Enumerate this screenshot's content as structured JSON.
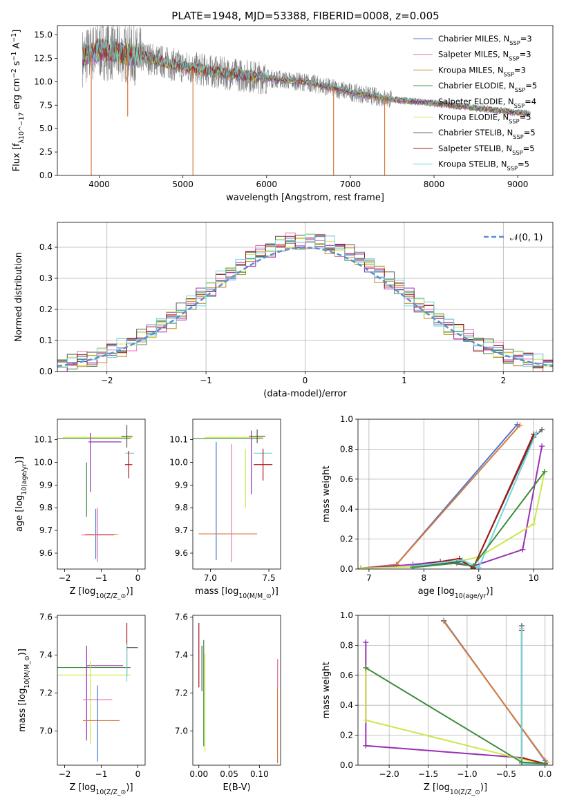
{
  "figure": {
    "title": "PLATE=1948, MJD=53388, FIBERID=0008, z=0.005"
  },
  "colors": {
    "chabrier_miles": "#4a78d6",
    "salpeter_miles": "#e676b5",
    "kroupa_miles": "#c08a2a",
    "chabrier_elodie": "#3c8c3c",
    "salpeter_elodie": "#9a2eb5",
    "kroupa_elodie": "#cde64a",
    "chabrier_stelib": "#555555",
    "salpeter_stelib": "#a51616",
    "kroupa_stelib": "#6fd6dc",
    "data": "#808080",
    "orange": "#d9793a",
    "normal_curve": "#5a8ed6"
  },
  "chart_data": [
    {
      "type": "line",
      "id": "spectrum",
      "title": "PLATE=1948, MJD=53388, FIBERID=0008, z=0.005",
      "xlabel": "wavelength [Angstrom, rest frame]",
      "ylabel": "Flux [f_λ 10^-17 erg cm^-2 s^-1 A^-1]",
      "xlim": [
        3500,
        9420
      ],
      "ylim": [
        0,
        16
      ],
      "xticks": [
        "4000",
        "5000",
        "6000",
        "7000",
        "8000",
        "9000"
      ],
      "yticks": [
        "0.0",
        "2.5",
        "5.0",
        "7.5",
        "10.0",
        "12.5",
        "15.0"
      ],
      "legend": "top-right",
      "series": [
        {
          "name": "Chabrier MILES, N_SSP=3"
        },
        {
          "name": "Salpeter MILES, N_SSP=3"
        },
        {
          "name": "Kroupa MILES, N_SSP=3"
        },
        {
          "name": "Chabrier ELODIE, N_SSP=5"
        },
        {
          "name": "Salpeter ELODIE, N_SSP=4"
        },
        {
          "name": "Kroupa ELODIE, N_SSP=5"
        },
        {
          "name": "Chabrier STELIB, N_SSP=5"
        },
        {
          "name": "Salpeter STELIB, N_SSP=5"
        },
        {
          "name": "Kroupa STELIB, N_SSP=5"
        }
      ],
      "continuum": {
        "x": [
          3800,
          4000,
          4500,
          5000,
          5500,
          6000,
          6500,
          7000,
          7500,
          8000,
          8500,
          9000,
          9150
        ],
        "y": [
          12.6,
          13.4,
          12.7,
          11.6,
          10.9,
          10.4,
          9.9,
          8.9,
          8.1,
          7.7,
          7.2,
          6.7,
          6.6
        ]
      },
      "dips": [
        {
          "x": 3905,
          "y": 0.0
        },
        {
          "x": 4340,
          "y": 6.3
        },
        {
          "x": 5120,
          "y": 0.0
        },
        {
          "x": 6800,
          "y": 0.0
        },
        {
          "x": 7410,
          "y": 0.0
        }
      ]
    },
    {
      "type": "line",
      "id": "residuals",
      "xlabel": "(data-model)/error",
      "ylabel": "Normed distribution",
      "xlim": [
        -2.5,
        2.5
      ],
      "ylim": [
        0,
        0.48
      ],
      "xticks": [
        "−2",
        "−1",
        "0",
        "1",
        "2"
      ],
      "yticks": [
        "0.0",
        "0.1",
        "0.2",
        "0.3",
        "0.4"
      ],
      "grid": true,
      "legend": "top-right",
      "legend_label": "𝒩(0, 1)",
      "bin_width": 0.1,
      "hist_noise": [
        0.01,
        -0.01,
        0.015,
        -0.02,
        0.005,
        0.02,
        -0.015,
        0.01,
        -0.005,
        0.018,
        -0.012,
        0.008,
        -0.02,
        0.012,
        0.0,
        -0.008,
        0.015,
        -0.018,
        0.006,
        0.02,
        -0.01
      ]
    },
    {
      "type": "scatter",
      "id": "age-vs-z",
      "xlabel": "Z [log10(Z/Z⊙)]",
      "ylabel": "age [log10(age/yr)]",
      "xlim": [
        -2.2,
        0.2
      ],
      "ylim": [
        9.53,
        10.19
      ],
      "xticks": [
        "−2",
        "−1",
        "0"
      ],
      "yticks": [
        "9.6",
        "9.7",
        "9.8",
        "9.9",
        "10.0",
        "10.1"
      ],
      "points": [
        {
          "x": -1.2,
          "y": 10.105,
          "xerr": 1.0,
          "yerr": 0.0,
          "color": "chabrier_elodie"
        },
        {
          "x": -1.1,
          "y": 10.11,
          "xerr": 0.95,
          "yerr": 0.0,
          "color": "kroupa_elodie"
        },
        {
          "x": -0.3,
          "y": 10.115,
          "xerr": 0.15,
          "yerr": 0.05,
          "color": "chabrier_stelib"
        },
        {
          "x": -1.3,
          "y": 10.0,
          "xerr": 0.0,
          "yerr": 0.13,
          "color": "salpeter_elodie"
        },
        {
          "x": -1.4,
          "y": 9.88,
          "xerr": 0.0,
          "yerr": 0.12,
          "color": "chabrier_elodie"
        },
        {
          "x": -0.9,
          "y": 10.09,
          "xerr": 0.45,
          "yerr": 0.0,
          "color": "salpeter_elodie"
        },
        {
          "x": -0.22,
          "y": 10.04,
          "xerr": 0.12,
          "yerr": 0.0,
          "color": "kroupa_stelib"
        },
        {
          "x": -0.25,
          "y": 9.99,
          "xerr": 0.1,
          "yerr": 0.06,
          "color": "salpeter_stelib"
        },
        {
          "x": -1.15,
          "y": 9.685,
          "xerr": 0.0,
          "yerr": 0.11,
          "color": "chabrier_miles"
        },
        {
          "x": -1.1,
          "y": 9.68,
          "xerr": 0.45,
          "yerr": 0.12,
          "color": "salpeter_miles"
        },
        {
          "x": -1.0,
          "y": 9.683,
          "xerr": 0.45,
          "yerr": 0.0,
          "color": "orange"
        }
      ]
    },
    {
      "type": "scatter",
      "id": "age-vs-mass",
      "xlabel": "mass [log10(M/M⊙)]",
      "ylabel": "",
      "xlim": [
        6.85,
        7.6
      ],
      "ylim": [
        9.53,
        10.19
      ],
      "xticks": [
        "7.0",
        "7.5"
      ],
      "yticks": [
        "9.6",
        "9.7",
        "9.8",
        "9.9",
        "10.0",
        "10.1"
      ],
      "points": [
        {
          "x": 7.15,
          "y": 10.105,
          "xerr": 0.3,
          "yerr": 0.0,
          "color": "chabrier_elodie"
        },
        {
          "x": 7.2,
          "y": 10.11,
          "xerr": 0.25,
          "yerr": 0.0,
          "color": "kroupa_elodie"
        },
        {
          "x": 7.4,
          "y": 10.115,
          "xerr": 0.07,
          "yerr": 0.03,
          "color": "chabrier_stelib"
        },
        {
          "x": 7.35,
          "y": 10.0,
          "xerr": 0.0,
          "yerr": 0.14,
          "color": "salpeter_elodie"
        },
        {
          "x": 7.45,
          "y": 10.04,
          "xerr": 0.08,
          "yerr": 0.0,
          "color": "kroupa_stelib"
        },
        {
          "x": 7.45,
          "y": 9.99,
          "xerr": 0.08,
          "yerr": 0.07,
          "color": "salpeter_stelib"
        },
        {
          "x": 7.3,
          "y": 9.93,
          "xerr": 0.0,
          "yerr": 0.13,
          "color": "kroupa_elodie"
        },
        {
          "x": 7.05,
          "y": 9.83,
          "xerr": 0.0,
          "yerr": 0.26,
          "color": "chabrier_miles"
        },
        {
          "x": 7.15,
          "y": 9.685,
          "xerr": 0.25,
          "yerr": 0.0,
          "color": "orange"
        },
        {
          "x": 7.18,
          "y": 9.82,
          "xerr": 0.0,
          "yerr": 0.26,
          "color": "salpeter_miles"
        }
      ]
    },
    {
      "type": "line",
      "id": "mass-weight-vs-age",
      "xlabel": "age [log10(age/yr)]",
      "ylabel": "mass weight",
      "xlim": [
        6.8,
        10.35
      ],
      "ylim": [
        0,
        1.0
      ],
      "xticks": [
        "7",
        "8",
        "9",
        "10"
      ],
      "yticks": [
        "0.0",
        "0.2",
        "0.4",
        "0.6",
        "0.8",
        "1.0"
      ],
      "grid": true,
      "series": [
        {
          "color": "chabrier_miles",
          "x": [
            6.85,
            7.5,
            9.7
          ],
          "y": [
            0.005,
            0.03,
            0.965
          ]
        },
        {
          "color": "orange",
          "x": [
            6.85,
            7.5,
            9.75
          ],
          "y": [
            0.005,
            0.03,
            0.96
          ]
        },
        {
          "color": "salpeter_elodie",
          "x": [
            6.85,
            7.8,
            8.3,
            8.9,
            9.8,
            10.15
          ],
          "y": [
            0.005,
            0.03,
            0.05,
            0.02,
            0.13,
            0.82
          ]
        },
        {
          "color": "kroupa_elodie",
          "x": [
            6.85,
            7.8,
            8.5,
            9.0,
            10.0,
            10.2
          ],
          "y": [
            0.005,
            0.015,
            0.04,
            0.08,
            0.3,
            0.65
          ]
        },
        {
          "color": "chabrier_stelib",
          "x": [
            7.8,
            8.7,
            8.9,
            10.0,
            10.15
          ],
          "y": [
            0.02,
            0.05,
            0.01,
            0.88,
            0.93
          ]
        },
        {
          "color": "salpeter_stelib",
          "x": [
            7.8,
            8.65,
            8.9,
            10.0
          ],
          "y": [
            0.02,
            0.07,
            0.005,
            0.9
          ]
        },
        {
          "color": "kroupa_stelib",
          "x": [
            7.8,
            8.7,
            9.0,
            10.05
          ],
          "y": [
            0.02,
            0.06,
            0.01,
            0.91
          ]
        },
        {
          "color": "chabrier_elodie",
          "x": [
            7.8,
            8.6,
            8.9,
            10.2
          ],
          "y": [
            0.01,
            0.04,
            0.02,
            0.65
          ]
        }
      ]
    },
    {
      "type": "scatter",
      "id": "mass-vs-z",
      "xlabel": "Z [log10(Z/Z⊙)]",
      "ylabel": "mass [log10(M/M⊙)]",
      "xlim": [
        -2.2,
        0.2
      ],
      "ylim": [
        6.82,
        7.61
      ],
      "xticks": [
        "−2",
        "−1",
        "0"
      ],
      "yticks": [
        "7.0",
        "7.2",
        "7.4",
        "7.6"
      ],
      "points": [
        {
          "x": -1.2,
          "y": 7.335,
          "xerr": 1.0,
          "yerr": 0.0,
          "color": "chabrier_elodie"
        },
        {
          "x": -1.2,
          "y": 7.295,
          "xerr": 1.0,
          "yerr": 0.0,
          "color": "kroupa_elodie"
        },
        {
          "x": -0.9,
          "y": 7.345,
          "xerr": 0.5,
          "yerr": 0.0,
          "color": "salpeter_elodie"
        },
        {
          "x": -1.4,
          "y": 7.2,
          "xerr": 0.0,
          "yerr": 0.25,
          "color": "salpeter_elodie"
        },
        {
          "x": -1.3,
          "y": 7.15,
          "xerr": 0.0,
          "yerr": 0.22,
          "color": "kroupa_elodie"
        },
        {
          "x": -1.1,
          "y": 7.165,
          "xerr": 0.4,
          "yerr": 0.0,
          "color": "salpeter_miles"
        },
        {
          "x": -0.3,
          "y": 7.43,
          "xerr": 0.0,
          "yerr": 0.14,
          "color": "salpeter_stelib"
        },
        {
          "x": -0.3,
          "y": 7.36,
          "xerr": 0.0,
          "yerr": 0.1,
          "color": "kroupa_stelib"
        },
        {
          "x": -0.15,
          "y": 7.44,
          "xerr": 0.15,
          "yerr": 0.0,
          "color": "chabrier_stelib"
        },
        {
          "x": -1.0,
          "y": 7.055,
          "xerr": 0.5,
          "yerr": 0.0,
          "color": "orange"
        },
        {
          "x": -1.1,
          "y": 7.04,
          "xerr": 0.0,
          "yerr": 0.2,
          "color": "chabrier_miles"
        }
      ]
    },
    {
      "type": "scatter",
      "id": "mass-vs-ebv",
      "xlabel": "E(B-V)",
      "ylabel": "",
      "xlim": [
        -0.01,
        0.135
      ],
      "ylim": [
        6.82,
        7.61
      ],
      "xticks": [
        "0.00",
        "0.05",
        "0.10"
      ],
      "yticks": [
        "7.0",
        "7.2",
        "7.4",
        "7.6"
      ],
      "points": [
        {
          "x": 0.0,
          "y": 7.4,
          "xerr": 0.0,
          "yerr": 0.17,
          "color": "salpeter_stelib"
        },
        {
          "x": 0.005,
          "y": 7.33,
          "xerr": 0.0,
          "yerr": 0.12,
          "color": "chabrier_stelib"
        },
        {
          "x": 0.008,
          "y": 7.2,
          "xerr": 0.0,
          "yerr": 0.28,
          "color": "chabrier_elodie"
        },
        {
          "x": 0.01,
          "y": 7.15,
          "xerr": 0.0,
          "yerr": 0.26,
          "color": "kroupa_elodie"
        },
        {
          "x": 0.13,
          "y": 7.1,
          "xerr": 0.0,
          "yerr": 0.27,
          "color": "orange"
        },
        {
          "x": 0.13,
          "y": 7.3,
          "xerr": 0.0,
          "yerr": 0.08,
          "color": "salpeter_miles"
        }
      ]
    },
    {
      "type": "line",
      "id": "mass-weight-vs-z",
      "xlabel": "Z [log10(Z/Z⊙)]",
      "ylabel": "mass weight",
      "xlim": [
        -2.4,
        0.1
      ],
      "ylim": [
        0,
        1.0
      ],
      "xticks": [
        "−2.0",
        "−1.5",
        "−1.0",
        "−0.5",
        "0.0"
      ],
      "yticks": [
        "0.0",
        "0.2",
        "0.4",
        "0.6",
        "0.8",
        "1.0"
      ],
      "grid": true,
      "series": [
        {
          "color": "chabrier_miles",
          "x": [
            -1.3,
            0.0
          ],
          "y": [
            0.965,
            0.03
          ]
        },
        {
          "color": "orange",
          "x": [
            -1.3,
            0.02
          ],
          "y": [
            0.96,
            0.02
          ]
        },
        {
          "color": "salpeter_elodie",
          "x": [
            -2.3,
            -2.3,
            -0.3,
            -0.3,
            0.0
          ],
          "y": [
            0.82,
            0.13,
            0.05,
            0.02,
            0.01
          ]
        },
        {
          "color": "kroupa_elodie",
          "x": [
            -2.3,
            -2.3,
            -0.3,
            0.0
          ],
          "y": [
            0.65,
            0.3,
            0.04,
            0.01
          ]
        },
        {
          "color": "chabrier_stelib",
          "x": [
            -0.3,
            -0.3,
            0.0
          ],
          "y": [
            0.93,
            0.02,
            0.01
          ]
        },
        {
          "color": "salpeter_stelib",
          "x": [
            -0.3,
            -0.3,
            0.0
          ],
          "y": [
            0.9,
            0.05,
            0.01
          ]
        },
        {
          "color": "kroupa_stelib",
          "x": [
            -0.3,
            -0.3,
            0.0
          ],
          "y": [
            0.91,
            0.01,
            0.005
          ]
        },
        {
          "color": "chabrier_elodie",
          "x": [
            -2.3,
            -0.3,
            0.0
          ],
          "y": [
            0.65,
            0.02,
            0.01
          ]
        }
      ]
    }
  ]
}
